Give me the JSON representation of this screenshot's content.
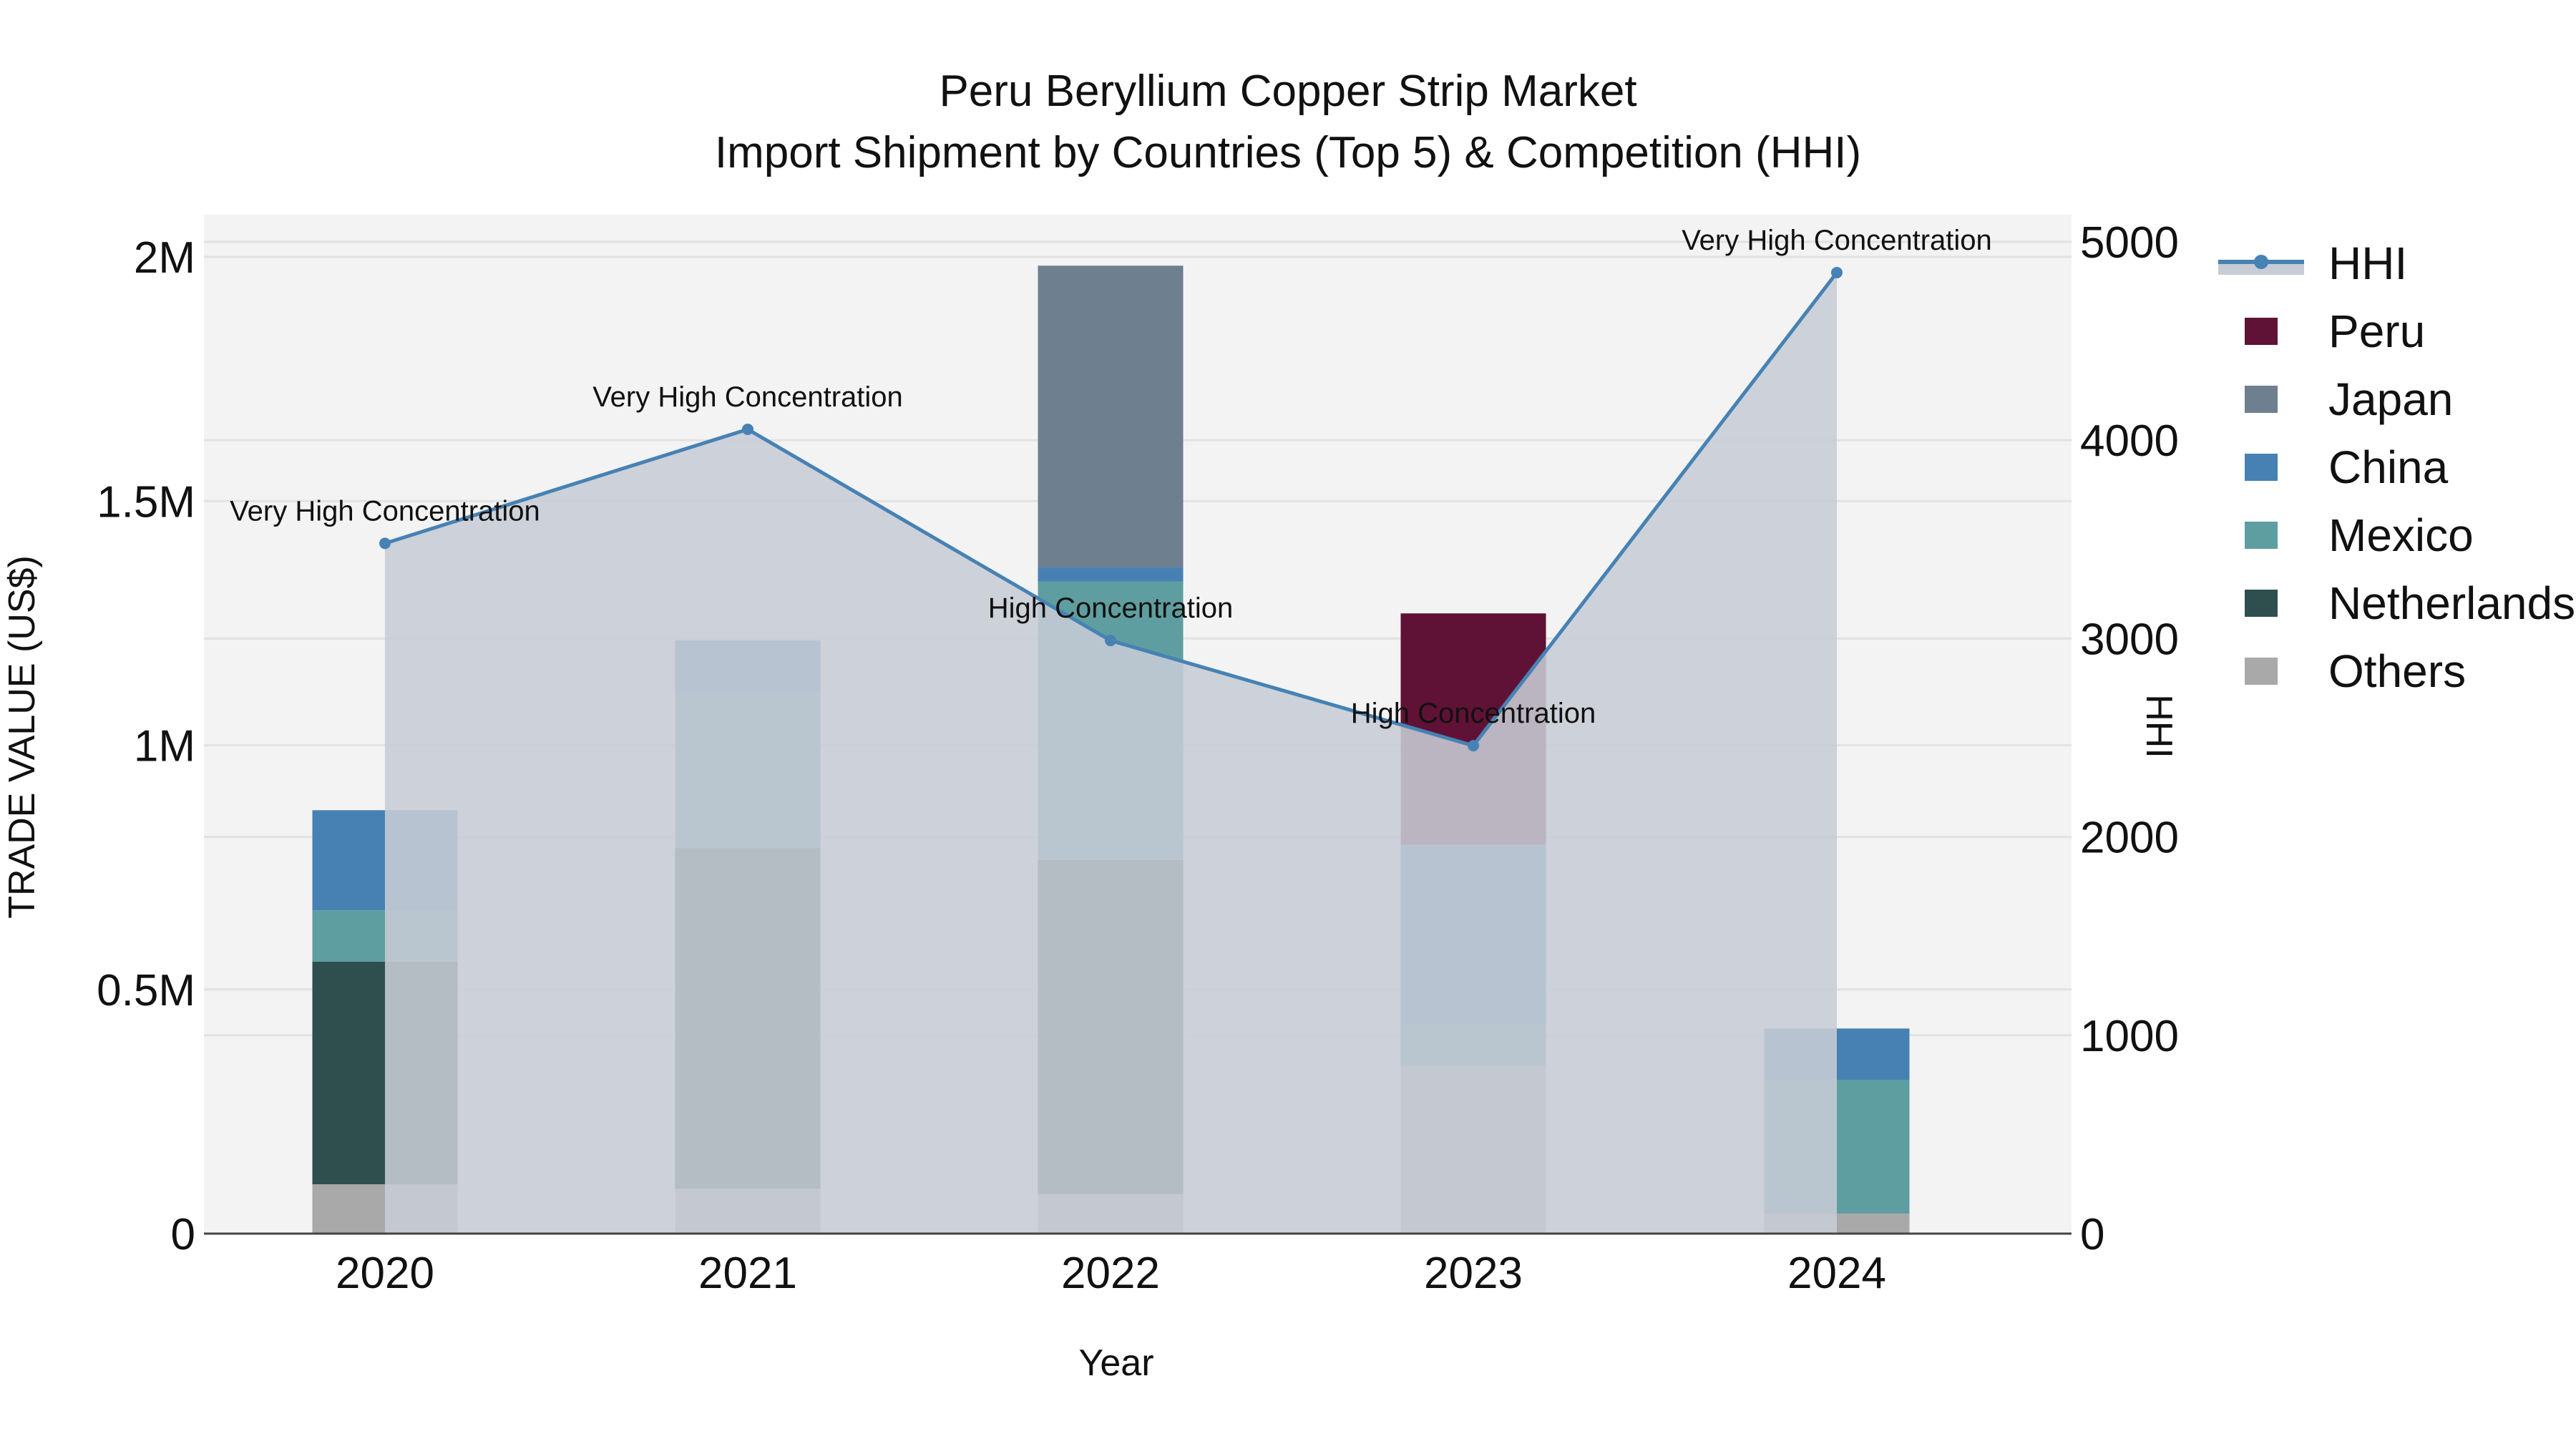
{
  "chart_data": {
    "type": "bar",
    "subtype": "stacked-bar-with-line-overlay",
    "title": "Peru Beryllium Copper Strip Market",
    "subtitle": "Import Shipment by Countries (Top 5) & Competition (HHI)",
    "xlabel": "Year",
    "ylabel": "TRADE VALUE (US$)",
    "y2label": "HHI",
    "categories": [
      "2020",
      "2021",
      "2022",
      "2023",
      "2024"
    ],
    "ylim": [
      0,
      2100000
    ],
    "y_ticks": [
      0,
      500000,
      1000000,
      1500000,
      2000000
    ],
    "y_tick_labels": [
      "0",
      "0.5M",
      "1M",
      "1.5M",
      "2M"
    ],
    "y2lim": [
      0,
      5200
    ],
    "y2_ticks": [
      0,
      1000,
      2000,
      3000,
      4000,
      5000
    ],
    "y2_tick_labels": [
      "0",
      "1000",
      "2000",
      "3000",
      "4000",
      "5000"
    ],
    "grid": true,
    "legend_position": "right",
    "stack_order_bottom_to_top": [
      "Others",
      "Netherlands",
      "Mexico",
      "China",
      "Japan",
      "Peru"
    ],
    "series": [
      {
        "name": "Peru",
        "type": "bar",
        "color": "#5f1235",
        "values": [
          0,
          0,
          0,
          473000,
          0
        ]
      },
      {
        "name": "Japan",
        "type": "bar",
        "color": "#6e7f90",
        "values": [
          0,
          0,
          618000,
          0,
          0
        ]
      },
      {
        "name": "China",
        "type": "bar",
        "color": "#4781b4",
        "values": [
          205000,
          105000,
          29000,
          369000,
          105000
        ]
      },
      {
        "name": "Mexico",
        "type": "bar",
        "color": "#5f9ea0",
        "values": [
          105000,
          321000,
          570000,
          85000,
          274000
        ]
      },
      {
        "name": "Netherlands",
        "type": "bar",
        "color": "#2f4f4f",
        "values": [
          456000,
          697000,
          684000,
          0,
          0
        ]
      },
      {
        "name": "Others",
        "type": "bar",
        "color": "#a9a9a9",
        "values": [
          101000,
          92000,
          81000,
          343000,
          41000
        ]
      },
      {
        "name": "HHI",
        "type": "line",
        "axis": "y2",
        "color": "#4682b4",
        "fill_color": "#c7ccd5",
        "values": [
          3480,
          4055,
          2990,
          2460,
          4845
        ]
      }
    ],
    "totals": [
      867000,
      1216000,
      1982000,
      1270000,
      421000
    ],
    "annotations": [
      {
        "x": "2020",
        "text": "Very High Concentration"
      },
      {
        "x": "2021",
        "text": "Very High Concentration"
      },
      {
        "x": "2022",
        "text": "High Concentration"
      },
      {
        "x": "2023",
        "text": "High Concentration"
      },
      {
        "x": "2024",
        "text": "Very High Concentration"
      }
    ]
  },
  "legend": {
    "items": [
      {
        "label": "HHI",
        "color": "#4682b4",
        "kind": "line"
      },
      {
        "label": "Peru",
        "color": "#5f1235",
        "kind": "square"
      },
      {
        "label": "Japan",
        "color": "#6e7f90",
        "kind": "square"
      },
      {
        "label": "China",
        "color": "#4781b4",
        "kind": "square"
      },
      {
        "label": "Mexico",
        "color": "#5f9ea0",
        "kind": "square"
      },
      {
        "label": "Netherlands",
        "color": "#2f4f4f",
        "kind": "square"
      },
      {
        "label": "Others",
        "color": "#a9a9a9",
        "kind": "square"
      }
    ]
  },
  "colors": {
    "plot_bg": "#f3f3f3",
    "grid": "#e2e2e2",
    "axis_line": "#444444",
    "hhi_fill": "#c7ccd5",
    "hhi_fill_opacity": 0.95
  }
}
